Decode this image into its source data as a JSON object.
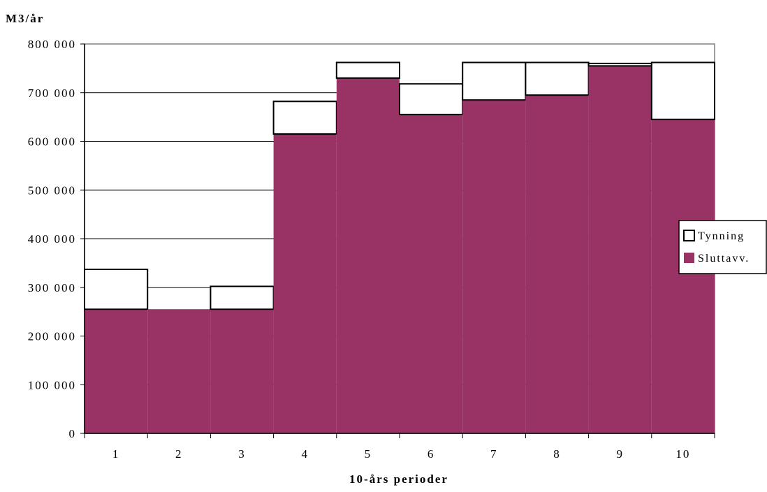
{
  "chart_data": {
    "type": "bar",
    "stacked": true,
    "ylabel": "M3/år",
    "xlabel": "10-års perioder",
    "ylim": [
      0,
      800000
    ],
    "yticks": [
      0,
      100000,
      200000,
      300000,
      400000,
      500000,
      600000,
      700000,
      800000
    ],
    "ytick_labels": [
      "0",
      "100 000",
      "200 000",
      "300 000",
      "400 000",
      "500 000",
      "600 000",
      "700 000",
      "800 000"
    ],
    "categories": [
      "1",
      "2",
      "3",
      "4",
      "5",
      "6",
      "7",
      "8",
      "9",
      "10"
    ],
    "series": [
      {
        "name": "Sluttavv.",
        "color": "#993366",
        "values": [
          255000,
          255000,
          255000,
          615000,
          730000,
          655000,
          685000,
          695000,
          755000,
          645000
        ]
      },
      {
        "name": "Tynning",
        "color": "#ffffff",
        "values": [
          82000,
          0,
          47000,
          67000,
          32000,
          63000,
          77000,
          67000,
          5000,
          117000
        ]
      }
    ],
    "grid": "horizontal",
    "legend_position": "right"
  }
}
